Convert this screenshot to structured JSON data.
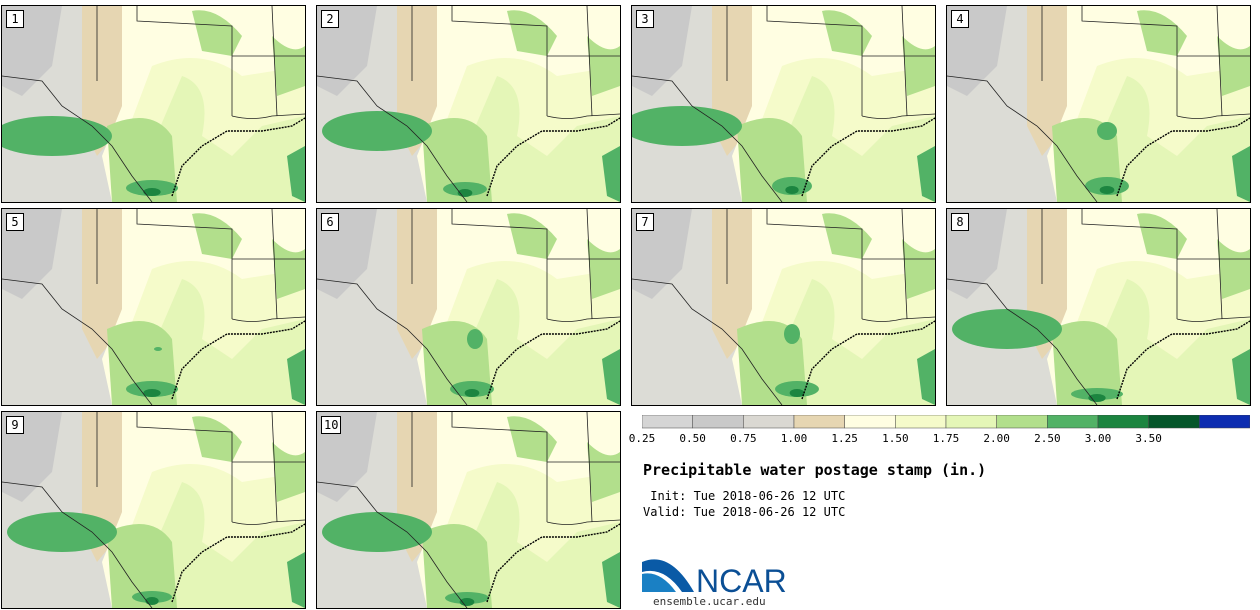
{
  "panels": [
    {
      "label": "1",
      "wet": [
        [
          150,
          182,
          26,
          16
        ],
        [
          50,
          130,
          60,
          40
        ]
      ]
    },
    {
      "label": "2",
      "wet": [
        [
          148,
          183,
          22,
          14
        ],
        [
          60,
          125,
          55,
          40
        ]
      ]
    },
    {
      "label": "3",
      "wet": [
        [
          160,
          180,
          20,
          18
        ],
        [
          50,
          120,
          60,
          40
        ]
      ]
    },
    {
      "label": "4",
      "wet": [
        [
          160,
          180,
          22,
          18
        ],
        [
          160,
          125,
          10,
          18
        ]
      ]
    },
    {
      "label": "5",
      "wet": [
        [
          150,
          180,
          26,
          16
        ],
        [
          156,
          140,
          4,
          4
        ]
      ]
    },
    {
      "label": "6",
      "wet": [
        [
          155,
          180,
          22,
          16
        ],
        [
          158,
          130,
          8,
          20
        ]
      ]
    },
    {
      "label": "7",
      "wet": [
        [
          165,
          180,
          22,
          16
        ],
        [
          160,
          125,
          8,
          20
        ]
      ]
    },
    {
      "label": "8",
      "wet": [
        [
          150,
          185,
          26,
          12
        ],
        [
          60,
          120,
          55,
          40
        ]
      ]
    },
    {
      "label": "9",
      "wet": [
        [
          150,
          185,
          20,
          12
        ],
        [
          60,
          120,
          55,
          40
        ]
      ]
    },
    {
      "label": "10",
      "wet": [
        [
          150,
          186,
          22,
          12
        ],
        [
          60,
          120,
          55,
          40
        ]
      ]
    }
  ],
  "colorbar": {
    "ticks": [
      "0.25",
      "0.50",
      "0.75",
      "1.00",
      "1.25",
      "1.50",
      "1.75",
      "2.00",
      "2.50",
      "3.00",
      "3.50"
    ],
    "colors": [
      "#d5d5d5",
      "#c9c9c9",
      "#dad8d2",
      "#e6d6b2",
      "#fffee2",
      "#f5fbca",
      "#e4f6b7",
      "#b2df8c",
      "#52b266",
      "#1c8540",
      "#05562a",
      "#0d2db0"
    ]
  },
  "title": "Precipitable water postage stamp (in.)",
  "init": " Init: Tue 2018-06-26 12 UTC",
  "valid": "Valid: Tue 2018-06-26 12 UTC",
  "logo_text": "NCAR",
  "site": "ensemble.ucar.edu",
  "fill_colors": {
    "gray": "#c9c9c9",
    "light_gray": "#dcdcd6",
    "tan": "#e6d6b2",
    "cream": "#fffee2",
    "yellow_green": "#f5fbca",
    "light_green": "#e4f6b7",
    "green": "#b2df8c",
    "dark_green": "#52b266",
    "darker_green": "#1c8540"
  }
}
